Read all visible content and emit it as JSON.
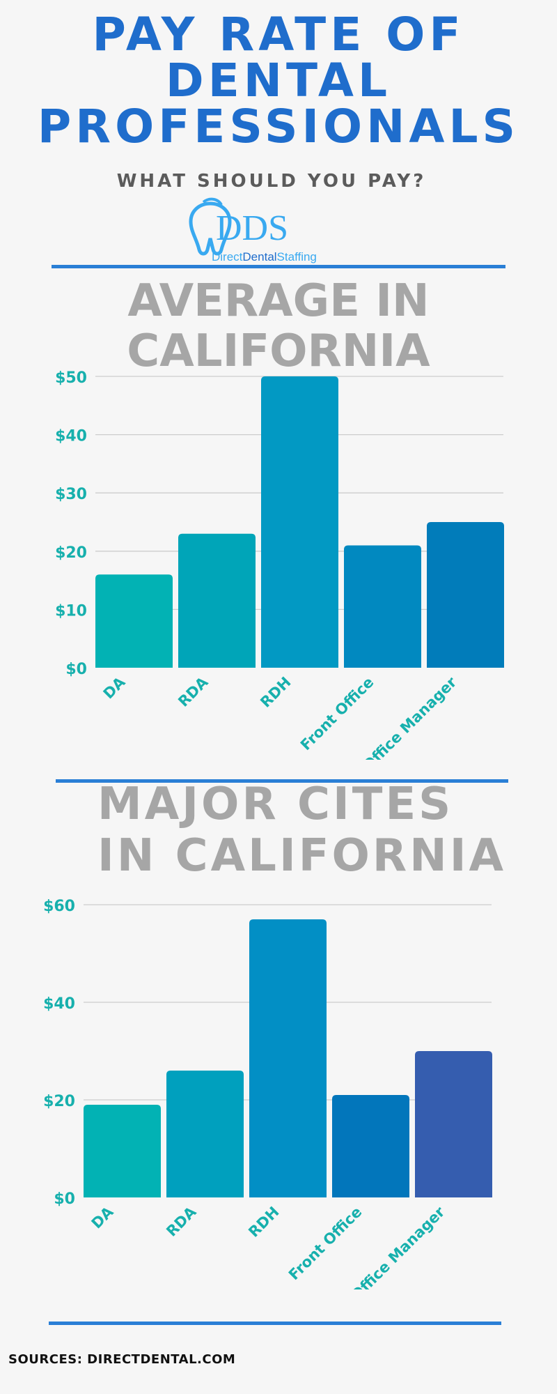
{
  "header": {
    "title_lines": [
      "PAY RATE OF",
      "DENTAL",
      "PROFESSIONALS"
    ],
    "subtitle": "WHAT SHOULD YOU PAY?"
  },
  "logo": {
    "mark": "DDS",
    "wordmark_parts": [
      "Direct",
      "Dental",
      "Staffing"
    ],
    "icon": "tooth-icon",
    "colors": {
      "light": "#39a9f0",
      "dark": "#1f6dcc"
    }
  },
  "colors": {
    "title": "#1f6dcc",
    "rule": "#2a7fd6",
    "axis_text": "#17b0ad",
    "section_title": "#a6a6a6",
    "grid": "#cccccc"
  },
  "sections": [
    {
      "title_lines": [
        "AVERAGE IN",
        "CALIFORNIA"
      ]
    },
    {
      "title_lines": [
        "MAJOR CITES",
        "IN CALIFORNIA"
      ]
    }
  ],
  "chart_data": [
    {
      "type": "bar",
      "title": "AVERAGE IN CALIFORNIA",
      "categories": [
        "DA",
        "RDA",
        "RDH",
        "Front Office",
        "Office Manager"
      ],
      "values": [
        16,
        23,
        50,
        21,
        25
      ],
      "ylim": [
        0,
        50
      ],
      "yticks": [
        0,
        10,
        20,
        30,
        40,
        50
      ],
      "ytick_labels": [
        "$0",
        "$10",
        "$20",
        "$30",
        "$40",
        "$50"
      ],
      "grid": true,
      "bar_colors": [
        "#02b2b4",
        "#00a5b8",
        "#0299c3",
        "#0189c0",
        "#017cba"
      ]
    },
    {
      "type": "bar",
      "title": "MAJOR CITES IN CALIFORNIA",
      "categories": [
        "DA",
        "RDA",
        "RDH",
        "Front Office",
        "Office Manager"
      ],
      "values": [
        19,
        26,
        57,
        21,
        30
      ],
      "ylim": [
        0,
        60
      ],
      "yticks": [
        0,
        20,
        40,
        60
      ],
      "ytick_labels": [
        "$0",
        "$20",
        "$40",
        "$60"
      ],
      "grid": true,
      "bar_colors": [
        "#02b2b4",
        "#00a0be",
        "#028fc5",
        "#0276bb",
        "#355daf"
      ]
    }
  ],
  "footer": {
    "sources": "SOURCES: DIRECTDENTAL.COM"
  }
}
